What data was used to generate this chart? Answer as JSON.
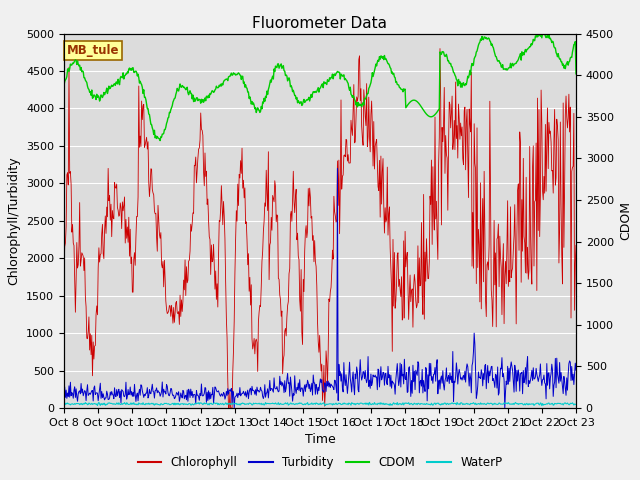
{
  "title": "Fluorometer Data",
  "xlabel": "Time",
  "ylabel_left": "Chlorophyll/Turbidity",
  "ylabel_right": "CDOM",
  "ylim_left": [
    0,
    5000
  ],
  "ylim_right": [
    0,
    4500
  ],
  "yticks_left": [
    0,
    500,
    1000,
    1500,
    2000,
    2500,
    3000,
    3500,
    4000,
    4500,
    5000
  ],
  "yticks_right": [
    0,
    500,
    1000,
    1500,
    2000,
    2500,
    3000,
    3500,
    4000,
    4500
  ],
  "xtick_labels": [
    "Oct 8",
    "Oct 9",
    "Oct 10",
    "Oct 11",
    "Oct 12",
    "Oct 13",
    "Oct 14",
    "Oct 15",
    "Oct 16",
    "Oct 17",
    "Oct 18",
    "Oct 19",
    "Oct 20",
    "Oct 21",
    "Oct 22",
    "Oct 23"
  ],
  "colors": {
    "chlorophyll": "#cc0000",
    "turbidity": "#0000cc",
    "cdom": "#00cc00",
    "waterp": "#00cccc",
    "plot_bg": "#dcdcdc",
    "fig_bg": "#f0f0f0"
  },
  "annotation_text": "MB_tule",
  "annotation_fg": "#993300",
  "annotation_bg": "#ffff99",
  "annotation_border": "#996600"
}
